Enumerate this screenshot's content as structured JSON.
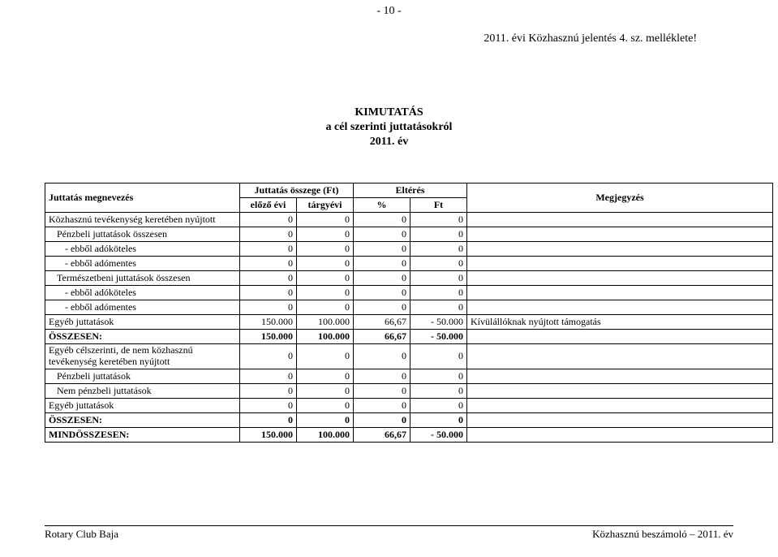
{
  "page_number": "-  10  -",
  "subtitle": "2011. évi Közhasznú jelentés 4. sz. melléklete!",
  "title_line1": "KIMUTATÁS",
  "title_line2": "a cél szerinti juttatásokról",
  "title_line3": "2011. év",
  "header": {
    "name": "Juttatás megnevezés",
    "amount": "Juttatás összege (Ft)",
    "diff": "Eltérés",
    "note": "Megjegyzés",
    "prev": "előző évi",
    "curr": "tárgyévi",
    "pct": "%",
    "ft": "Ft"
  },
  "rows": [
    {
      "name": "Közhasznú tevékenység keretében nyújtott",
      "c1": "0",
      "c2": "0",
      "c3": "0",
      "c4": "0",
      "note": "",
      "indent": 0,
      "bold": false
    },
    {
      "name": "Pénzbeli juttatások összesen",
      "c1": "0",
      "c2": "0",
      "c3": "0",
      "c4": "0",
      "note": "",
      "indent": 1,
      "bold": false
    },
    {
      "name": "- ebből adóköteles",
      "c1": "0",
      "c2": "0",
      "c3": "0",
      "c4": "0",
      "note": "",
      "indent": 2,
      "bold": false
    },
    {
      "name": "- ebből adómentes",
      "c1": "0",
      "c2": "0",
      "c3": "0",
      "c4": "0",
      "note": "",
      "indent": 2,
      "bold": false
    },
    {
      "name": "Természetbeni juttatások összesen",
      "c1": "0",
      "c2": "0",
      "c3": "0",
      "c4": "0",
      "note": "",
      "indent": 1,
      "bold": false
    },
    {
      "name": "- ebből adóköteles",
      "c1": "0",
      "c2": "0",
      "c3": "0",
      "c4": "0",
      "note": "",
      "indent": 2,
      "bold": false
    },
    {
      "name": "- ebből adómentes",
      "c1": "0",
      "c2": "0",
      "c3": "0",
      "c4": "0",
      "note": "",
      "indent": 2,
      "bold": false
    },
    {
      "name": "Egyéb juttatások",
      "c1": "150.000",
      "c2": "100.000",
      "c3": "66,67",
      "c4": "- 50.000",
      "note": "Kívülállóknak nyújtott támogatás",
      "indent": 0,
      "bold": false
    },
    {
      "name": "ÖSSZESEN:",
      "c1": "150.000",
      "c2": "100.000",
      "c3": "66,67",
      "c4": "- 50.000",
      "note": "",
      "indent": 0,
      "bold": true
    },
    {
      "name": "Egyéb célszerinti, de nem közhasznú tevékenység keretében nyújtott",
      "c1": "0",
      "c2": "0",
      "c3": "0",
      "c4": "0",
      "note": "",
      "indent": 0,
      "bold": false,
      "tall": true
    },
    {
      "name": "Pénzbeli juttatások",
      "c1": "0",
      "c2": "0",
      "c3": "0",
      "c4": "0",
      "note": "",
      "indent": 1,
      "bold": false
    },
    {
      "name": "Nem pénzbeli juttatások",
      "c1": "0",
      "c2": "0",
      "c3": "0",
      "c4": "0",
      "note": "",
      "indent": 1,
      "bold": false
    },
    {
      "name": "Egyéb juttatások",
      "c1": "0",
      "c2": "0",
      "c3": "0",
      "c4": "0",
      "note": "",
      "indent": 0,
      "bold": false
    },
    {
      "name": "ÖSSZESEN:",
      "c1": "0",
      "c2": "0",
      "c3": "0",
      "c4": "0",
      "note": "",
      "indent": 0,
      "bold": true
    },
    {
      "name": "MINDÖSSZESEN:",
      "c1": "150.000",
      "c2": "100.000",
      "c3": "66,67",
      "c4": "- 50.000",
      "note": "",
      "indent": 0,
      "bold": true
    }
  ],
  "footer_left": "Rotary Club Baja",
  "footer_right": "Közhasznú beszámoló – 2011. év"
}
